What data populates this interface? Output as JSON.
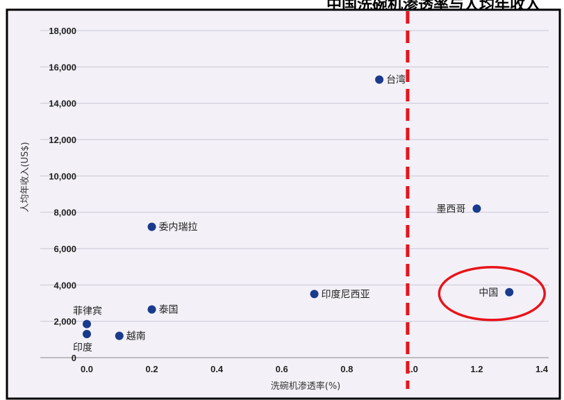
{
  "banner_text": "中国洗碗机渗透率与人均年收入",
  "chart_data": {
    "type": "scatter",
    "xlabel": "洗碗机渗透率(%)",
    "ylabel": "人均年收入(US$)",
    "xlim": [
      0,
      1.4
    ],
    "ylim": [
      0,
      18000
    ],
    "x_ticks": [
      "0.0",
      "0.2",
      "0.4",
      "0.6",
      "0.8",
      "1.0",
      "1.2",
      "1.4"
    ],
    "y_ticks": [
      "0",
      "2,000",
      "4,000",
      "6,000",
      "8,000",
      "10,000",
      "12,000",
      "14,000",
      "16,000",
      "18,000"
    ],
    "grid": "horizontal",
    "points": [
      {
        "label": "台湾",
        "x": 0.9,
        "y": 15300,
        "label_pos": "right"
      },
      {
        "label": "墨西哥",
        "x": 1.2,
        "y": 8200,
        "label_pos": "left"
      },
      {
        "label": "委内瑞拉",
        "x": 0.2,
        "y": 7200,
        "label_pos": "right"
      },
      {
        "label": "印度尼西亚",
        "x": 0.7,
        "y": 3500,
        "label_pos": "right"
      },
      {
        "label": "中国",
        "x": 1.3,
        "y": 3600,
        "label_pos": "left"
      },
      {
        "label": "泰国",
        "x": 0.2,
        "y": 2650,
        "label_pos": "right"
      },
      {
        "label": "菲律宾",
        "x": 0.0,
        "y": 1850,
        "label_pos": "above"
      },
      {
        "label": "印度",
        "x": 0.0,
        "y": 1300,
        "label_pos": "below"
      },
      {
        "label": "越南",
        "x": 0.1,
        "y": 1200,
        "label_pos": "right"
      }
    ],
    "reference_line": {
      "x": 1.0,
      "color": "#e8141b",
      "style": "dashed"
    },
    "highlight": {
      "label": "中国",
      "color": "#e8141b"
    },
    "point_color": "#1a3a8c",
    "background": "#f3f1f7"
  }
}
